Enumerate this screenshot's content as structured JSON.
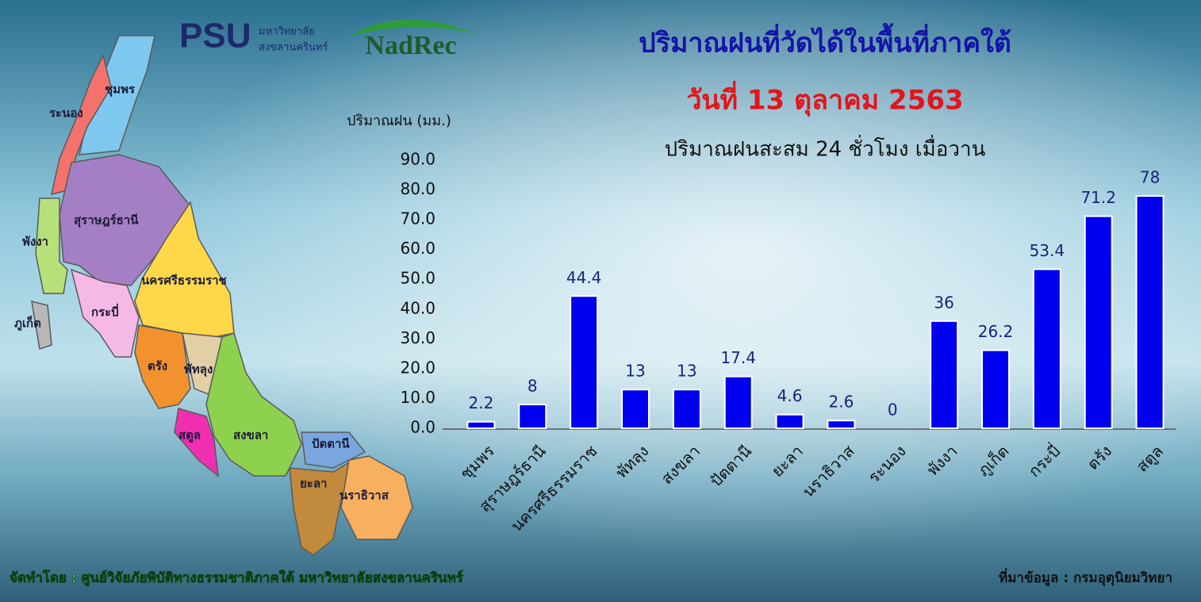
{
  "logos": {
    "psu": "PSU",
    "university_line1": "มหาวิทยาลัย",
    "university_line2": "สงขลานครินทร์",
    "nadrec": "NadRec"
  },
  "map_labels": [
    "ชุมพร",
    "ระนอง",
    "สุราษฎร์ธานี",
    "พังงา",
    "นครศรีธรรมราช",
    "ภูเก็ต",
    "กระบี่",
    "ตรัง",
    "พัทลุง",
    "สตูล",
    "สงขลา",
    "ปัตตานี",
    "ยะลา",
    "นราธิวาส"
  ],
  "footer": {
    "credit": "จัดทำโดย : ศูนย์วิจัยภัยพิบัติทางธรรมชาติภาคใต้ มหาวิทยาลัยสงขลานครินทร์",
    "source": "ที่มาข้อมูล : กรมอุตุนิยมวิทยา"
  },
  "chart_data": {
    "type": "bar",
    "title": "ปริมาณฝนที่วัดได้ในพื้นที่ภาคใต้",
    "subtitle": "วันที่ 13 ตุลาคม 2563",
    "description": "ปริมาณฝนสะสม 24 ชั่วโมง เมื่อวาน",
    "y_label": "ปริมาณฝน (มม.)",
    "categories": [
      "ชุมพร",
      "สุราษฎร์ธานี",
      "นครศรีธรรมราช",
      "พัทลุง",
      "สงขลา",
      "ปัตตานี",
      "ยะลา",
      "นราธิวาส",
      "ระนอง",
      "พังงา",
      "ภูเก็ต",
      "กระบี่",
      "ตรัง",
      "สตูล"
    ],
    "values": [
      2.2,
      8,
      44.4,
      13,
      13,
      17.4,
      4.6,
      2.6,
      0,
      36,
      26.2,
      53.4,
      71.2,
      78
    ],
    "color": "#0000ee",
    "ylim": [
      0,
      90
    ],
    "yticks": [
      {
        "value": 0,
        "label": "0.0"
      },
      {
        "value": 10,
        "label": "10.0"
      },
      {
        "value": 20,
        "label": "20.0"
      },
      {
        "value": 30,
        "label": "30.0"
      },
      {
        "value": 40,
        "label": "40.0"
      },
      {
        "value": 50,
        "label": "50.0"
      },
      {
        "value": 60,
        "label": "60.0"
      },
      {
        "value": 70,
        "label": "70.0"
      },
      {
        "value": 80,
        "label": "80.0"
      },
      {
        "value": 90,
        "label": "90.0"
      }
    ],
    "grid": false
  }
}
